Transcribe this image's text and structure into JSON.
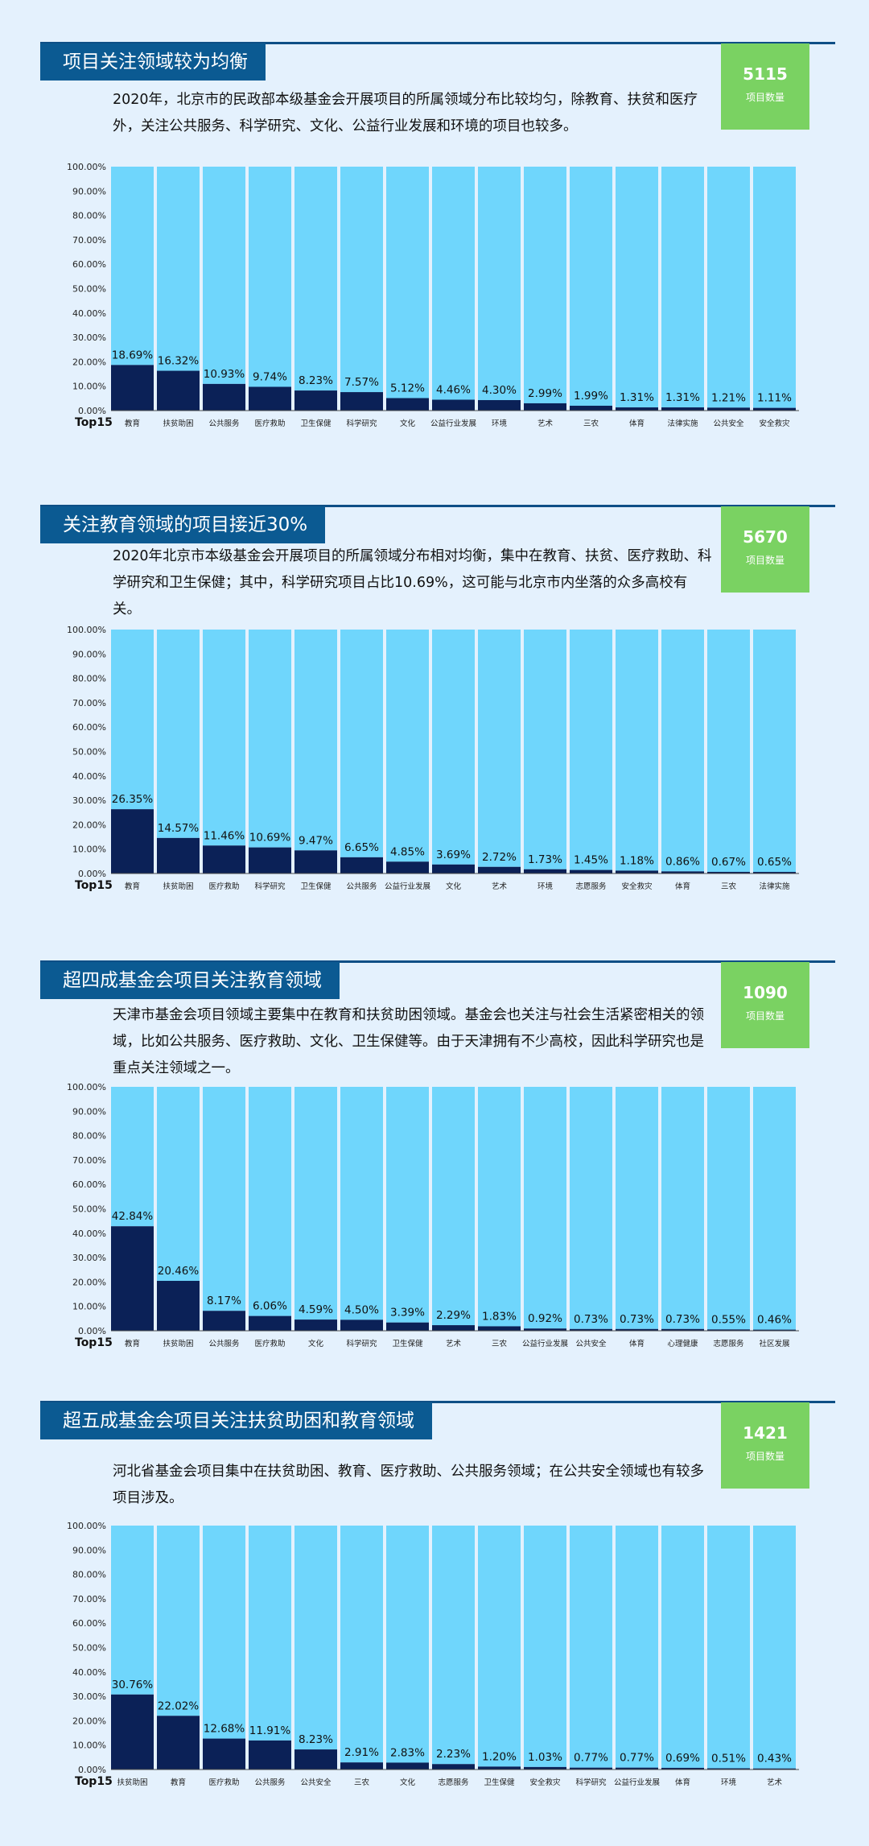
{
  "sections": [
    {
      "title": "项目关注领域较为均衡",
      "badge_value": "5115",
      "badge_label": "项目数量",
      "description": "2020年，北京市的民政部本级基金会开展项目的所属领域分布比较均匀，除教育、扶贫和医疗外，关注公共服务、科学研究、文化、公益行业发展和环境的项目也较多。"
    },
    {
      "title": "关注教育领域的项目接近30%",
      "badge_value": "5670",
      "badge_label": "项目数量",
      "description": "2020年北京市本级基金会开展项目的所属领域分布相对均衡，集中在教育、扶贫、医疗救助、科学研究和卫生保健；其中，科学研究项目占比10.69%，这可能与北京市内坐落的众多高校有关。"
    },
    {
      "title": "超四成基金会项目关注教育领域",
      "badge_value": "1090",
      "badge_label": "项目数量",
      "description": "天津市基金会项目领域主要集中在教育和扶贫助困领域。基金会也关注与社会生活紧密相关的领域，比如公共服务、医疗救助、文化、卫生保健等。由于天津拥有不少高校，因此科学研究也是重点关注领域之一。"
    },
    {
      "title": "超五成基金会项目关注扶贫助困和教育领域",
      "badge_value": "1421",
      "badge_label": "项目数量",
      "description": "河北省基金会项目集中在扶贫助困、教育、医疗救助、公共服务领域；在公共安全领域也有较多项目涉及。"
    }
  ],
  "chart_data": [
    {
      "type": "bar",
      "stacked": true,
      "categories": [
        "教育",
        "扶贫助困",
        "公共服务",
        "医疗救助",
        "卫生保健",
        "科学研究",
        "文化",
        "公益行业发展",
        "环境",
        "艺术",
        "三农",
        "体育",
        "法律实施",
        "公共安全",
        "安全救灾"
      ],
      "values": [
        18.69,
        16.32,
        10.93,
        9.74,
        8.23,
        7.57,
        5.12,
        4.46,
        4.3,
        2.99,
        1.99,
        1.31,
        1.31,
        1.21,
        1.11
      ],
      "value_labels": [
        "18.69%",
        "16.32%",
        "10.93%",
        "9.74%",
        "8.23%",
        "7.57%",
        "5.12%",
        "4.46%",
        "4.30%",
        "2.99%",
        "1.99%",
        "1.31%",
        "1.31%",
        "1.21%",
        "1.11%"
      ],
      "xlabel": "Top15",
      "ylim": [
        0,
        100
      ],
      "yticks": [
        "0.00%",
        "10.00%",
        "20.00%",
        "30.00%",
        "40.00%",
        "50.00%",
        "60.00%",
        "70.00%",
        "80.00%",
        "90.00%",
        "100.00%"
      ],
      "colors": {
        "value": "#0b2157",
        "remainder": "#6fd6fc"
      }
    },
    {
      "type": "bar",
      "stacked": true,
      "categories": [
        "教育",
        "扶贫助困",
        "医疗救助",
        "科学研究",
        "卫生保健",
        "公共服务",
        "公益行业发展",
        "文化",
        "艺术",
        "环境",
        "志愿服务",
        "安全救灾",
        "体育",
        "三农",
        "法律实施"
      ],
      "values": [
        26.35,
        14.57,
        11.46,
        10.69,
        9.47,
        6.65,
        4.85,
        3.69,
        2.72,
        1.73,
        1.45,
        1.18,
        0.86,
        0.67,
        0.65
      ],
      "value_labels": [
        "26.35%",
        "14.57%",
        "11.46%",
        "10.69%",
        "9.47%",
        "6.65%",
        "4.85%",
        "3.69%",
        "2.72%",
        "1.73%",
        "1.45%",
        "1.18%",
        "0.86%",
        "0.67%",
        "0.65%"
      ],
      "xlabel": "Top15",
      "ylim": [
        0,
        100
      ],
      "yticks": [
        "0.00%",
        "10.00%",
        "20.00%",
        "30.00%",
        "40.00%",
        "50.00%",
        "60.00%",
        "70.00%",
        "80.00%",
        "90.00%",
        "100.00%"
      ],
      "colors": {
        "value": "#0b2157",
        "remainder": "#6fd6fc"
      }
    },
    {
      "type": "bar",
      "stacked": true,
      "categories": [
        "教育",
        "扶贫助困",
        "公共服务",
        "医疗救助",
        "文化",
        "科学研究",
        "卫生保健",
        "艺术",
        "三农",
        "公益行业发展",
        "公共安全",
        "体育",
        "心理健康",
        "志愿服务",
        "社区发展"
      ],
      "values": [
        42.84,
        20.46,
        8.17,
        6.06,
        4.59,
        4.5,
        3.39,
        2.29,
        1.83,
        0.92,
        0.73,
        0.73,
        0.73,
        0.55,
        0.46
      ],
      "value_labels": [
        "42.84%",
        "20.46%",
        "8.17%",
        "6.06%",
        "4.59%",
        "4.50%",
        "3.39%",
        "2.29%",
        "1.83%",
        "0.92%",
        "0.73%",
        "0.73%",
        "0.73%",
        "0.55%",
        "0.46%"
      ],
      "xlabel": "Top15",
      "ylim": [
        0,
        100
      ],
      "yticks": [
        "0.00%",
        "10.00%",
        "20.00%",
        "30.00%",
        "40.00%",
        "50.00%",
        "60.00%",
        "70.00%",
        "80.00%",
        "90.00%",
        "100.00%"
      ],
      "colors": {
        "value": "#0b2157",
        "remainder": "#6fd6fc"
      }
    },
    {
      "type": "bar",
      "stacked": true,
      "categories": [
        "扶贫助困",
        "教育",
        "医疗救助",
        "公共服务",
        "公共安全",
        "三农",
        "文化",
        "志愿服务",
        "卫生保健",
        "安全救灾",
        "科学研究",
        "公益行业发展",
        "体育",
        "环境",
        "艺术"
      ],
      "values": [
        30.76,
        22.02,
        12.68,
        11.91,
        8.23,
        2.91,
        2.83,
        2.23,
        1.2,
        1.03,
        0.77,
        0.77,
        0.69,
        0.51,
        0.43
      ],
      "value_labels": [
        "30.76%",
        "22.02%",
        "12.68%",
        "11.91%",
        "8.23%",
        "2.91%",
        "2.83%",
        "2.23%",
        "1.20%",
        "1.03%",
        "0.77%",
        "0.77%",
        "0.69%",
        "0.51%",
        "0.43%"
      ],
      "xlabel": "Top15",
      "ylim": [
        0,
        100
      ],
      "yticks": [
        "0.00%",
        "10.00%",
        "20.00%",
        "30.00%",
        "40.00%",
        "50.00%",
        "60.00%",
        "70.00%",
        "80.00%",
        "90.00%",
        "100.00%"
      ],
      "colors": {
        "value": "#0b2157",
        "remainder": "#6fd6fc"
      }
    }
  ]
}
